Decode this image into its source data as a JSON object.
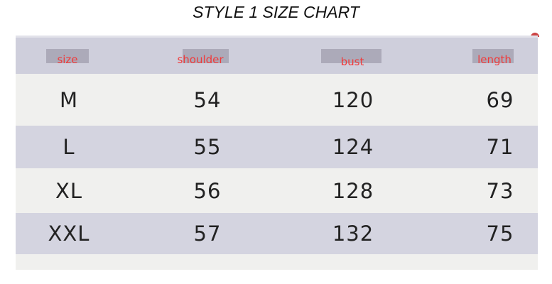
{
  "title": "STYLE 1 SIZE CHART",
  "headers": [
    "size",
    "shoulder",
    "bust",
    "length"
  ],
  "rows": [
    [
      "M",
      "54",
      "120",
      "69"
    ],
    [
      "L",
      "55",
      "124",
      "71"
    ],
    [
      "XL",
      "56",
      "128",
      "73"
    ],
    [
      "XXL",
      "57",
      "132",
      "75"
    ]
  ],
  "colors": {
    "header_bg": "#cfcfdc",
    "header_text": "#f03a3a",
    "row_light": "#f0f0ee",
    "row_shaded": "#d4d4e0"
  }
}
